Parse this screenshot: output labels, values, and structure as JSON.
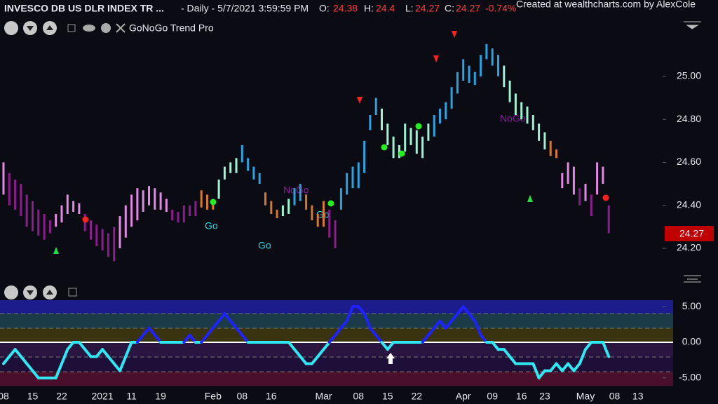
{
  "header": {
    "symbol": "INVESCO DB US DLR INDEX TR ...",
    "interval": "- Daily - 5/7/2021 3:59:59 PM",
    "quote": [
      {
        "label": "O:",
        "value": 24.38
      },
      {
        "label": "H:",
        "value": 24.4
      },
      {
        "label": "L:",
        "value": 24.27
      },
      {
        "label": "C:",
        "value": 24.27
      }
    ],
    "change": "-0.74%",
    "credit": "Created at wealthcharts.com by AlexCole",
    "indicator": "GoNoGo Trend Pro",
    "price_badge": 24.27
  },
  "chart_data": [
    {
      "type": "ohlc",
      "annotations": [
        "Go",
        "Go",
        "NoGo",
        "Go",
        "NoGo"
      ],
      "categories": [
        "08",
        null,
        null,
        null,
        null,
        "15",
        null,
        null,
        null,
        null,
        "22",
        null,
        null,
        null,
        null,
        null,
        null,
        "2021",
        null,
        null,
        null,
        null,
        "11",
        null,
        null,
        null,
        null,
        "19",
        null,
        null,
        null,
        null,
        null,
        null,
        null,
        null,
        "Feb",
        null,
        null,
        null,
        null,
        "08",
        null,
        null,
        null,
        null,
        "16",
        null,
        null,
        null,
        null,
        null,
        null,
        null,
        null,
        "Mar",
        null,
        null,
        null,
        null,
        null,
        "08",
        null,
        null,
        null,
        null,
        "15",
        null,
        null,
        null,
        null,
        "22",
        null,
        null,
        null,
        null,
        null,
        null,
        null,
        "Apr",
        null,
        null,
        null,
        null,
        "09",
        null,
        null,
        null,
        null,
        "16",
        null,
        null,
        null,
        "23",
        null,
        null,
        null,
        null,
        null,
        null,
        "May",
        null,
        null,
        null,
        null,
        "08",
        null,
        null,
        null,
        "13"
      ],
      "high": [
        24.6,
        24.55,
        24.52,
        24.5,
        24.45,
        24.42,
        24.38,
        24.36,
        24.33,
        24.36,
        24.4,
        24.45,
        24.42,
        24.41,
        24.36,
        24.33,
        24.31,
        24.29,
        24.27,
        24.3,
        24.35,
        24.4,
        24.45,
        24.48,
        24.47,
        24.49,
        24.48,
        24.46,
        24.43,
        24.38,
        24.37,
        24.4,
        24.4,
        24.42,
        24.47,
        24.45,
        24.42,
        24.52,
        24.58,
        24.6,
        24.62,
        24.68,
        24.62,
        24.58,
        24.55,
        24.46,
        24.42,
        24.38,
        24.4,
        24.43,
        24.48,
        24.5,
        24.45,
        24.4,
        24.36,
        24.42,
        24.38,
        24.33,
        24.48,
        24.55,
        24.58,
        24.6,
        24.7,
        24.82,
        24.9,
        24.85,
        24.78,
        24.72,
        24.68,
        24.78,
        24.76,
        24.75,
        24.72,
        24.78,
        24.82,
        24.85,
        24.88,
        24.95,
        25.02,
        25.08,
        25.05,
        25.02,
        25.1,
        25.15,
        25.13,
        25.1,
        25.05,
        24.98,
        24.92,
        24.88,
        24.86,
        24.82,
        24.78,
        24.74,
        24.7,
        24.66,
        24.55,
        24.6,
        24.58,
        24.48,
        24.5,
        24.45,
        24.6,
        24.58,
        24.4,
        null,
        null,
        null,
        null,
        null
      ],
      "low": [
        24.45,
        24.4,
        24.38,
        24.35,
        24.3,
        24.28,
        24.26,
        24.24,
        24.27,
        24.3,
        24.32,
        24.36,
        24.37,
        24.36,
        24.28,
        24.24,
        24.21,
        24.19,
        24.16,
        24.14,
        24.2,
        24.25,
        24.3,
        24.33,
        24.37,
        24.4,
        24.38,
        24.38,
        24.37,
        24.33,
        24.32,
        24.32,
        24.35,
        24.35,
        24.39,
        24.38,
        24.38,
        24.43,
        24.52,
        24.55,
        24.55,
        24.6,
        24.56,
        24.52,
        24.5,
        24.4,
        24.36,
        24.34,
        24.35,
        24.36,
        24.4,
        24.42,
        24.38,
        24.33,
        24.3,
        24.3,
        24.25,
        24.2,
        24.38,
        24.45,
        24.48,
        24.48,
        24.55,
        24.75,
        24.82,
        24.75,
        24.68,
        24.62,
        24.62,
        24.65,
        24.68,
        24.64,
        24.62,
        24.7,
        24.72,
        24.78,
        24.8,
        24.85,
        24.92,
        24.98,
        24.97,
        24.96,
        25.0,
        25.08,
        25.05,
        25.0,
        24.95,
        24.88,
        24.82,
        24.8,
        24.78,
        24.75,
        24.7,
        24.66,
        24.63,
        24.62,
        24.48,
        24.5,
        24.45,
        24.4,
        24.42,
        24.35,
        24.45,
        24.5,
        24.27,
        null,
        null,
        null,
        null,
        null
      ],
      "colors": [
        "#e28ae0",
        "#8e1b8c",
        "#8e1b8c",
        "#8e1b8c",
        "#8e1b8c",
        "#8e1b8c",
        "#8e1b8c",
        "#8e1b8c",
        "#8e1b8c",
        "#e28ae0",
        "#e28ae0",
        "#e28ae0",
        "#e28ae0",
        "#e28ae0",
        "#8e1b8c",
        "#8e1b8c",
        "#8e1b8c",
        "#8e1b8c",
        "#8e1b8c",
        "#8e1b8c",
        "#e28ae0",
        "#e28ae0",
        "#e28ae0",
        "#e28ae0",
        "#e28ae0",
        "#e28ae0",
        "#e28ae0",
        "#e28ae0",
        "#e28ae0",
        "#8e1b8c",
        "#8e1b8c",
        "#8e1b8c",
        "#8e1b8c",
        "#8e1b8c",
        "#d8782c",
        "#d8782c",
        "#d8782c",
        "#9ff2d4",
        "#9ff2d4",
        "#9ff2d4",
        "#9ff2d4",
        "#2aa3e0",
        "#2aa3e0",
        "#2aa3e0",
        "#2aa3e0",
        "#d8782c",
        "#d8782c",
        "#d8782c",
        "#9ff2d4",
        "#9ff2d4",
        "#2aa3e0",
        "#2aa3e0",
        "#d8782c",
        "#d8782c",
        "#d8782c",
        "#d8782c",
        "#8e1b8c",
        "#8e1b8c",
        "#2aa3e0",
        "#2aa3e0",
        "#2aa3e0",
        "#2aa3e0",
        "#2aa3e0",
        "#2aa3e0",
        "#2aa3e0",
        "#9ff2d4",
        "#9ff2d4",
        "#9ff2d4",
        "#9ff2d4",
        "#9ff2d4",
        "#9ff2d4",
        "#9ff2d4",
        "#9ff2d4",
        "#9ff2d4",
        "#2aa3e0",
        "#2aa3e0",
        "#2aa3e0",
        "#2aa3e0",
        "#2aa3e0",
        "#2aa3e0",
        "#2aa3e0",
        "#2aa3e0",
        "#2aa3e0",
        "#2aa3e0",
        "#2aa3e0",
        "#2aa3e0",
        "#9ff2d4",
        "#9ff2d4",
        "#9ff2d4",
        "#9ff2d4",
        "#9ff2d4",
        "#9ff2d4",
        "#9ff2d4",
        "#9ff2d4",
        "#d8782c",
        "#d8782c",
        "#e28ae0",
        "#e28ae0",
        "#e28ae0",
        "#8e1b8c",
        "#e28ae0",
        "#8e1b8c",
        "#e28ae0",
        "#e28ae0",
        "#8e1b8c",
        null,
        null,
        null,
        null,
        null
      ],
      "ylim": [
        24.05,
        25.29
      ],
      "yticks": [
        {
          "value": 24.2,
          "label": "24.20"
        },
        {
          "value": 24.4,
          "label": "24.40"
        },
        {
          "value": 24.6,
          "label": "24.60"
        },
        {
          "value": 24.8,
          "label": "24.80"
        },
        {
          "value": 25.0,
          "label": "25.00"
        }
      ]
    },
    {
      "type": "line",
      "values": [
        -3,
        -2,
        -1,
        -2,
        -3,
        -4,
        -5,
        -5,
        -5,
        -5,
        -3,
        -1,
        0,
        0,
        -1,
        -2,
        -2,
        -1,
        -2,
        -3,
        -4,
        -2,
        0,
        0,
        1,
        2,
        1,
        0,
        0,
        0,
        0,
        0,
        1,
        0,
        0,
        1,
        2,
        3,
        4,
        3,
        2,
        1,
        0,
        0,
        0,
        0,
        0,
        0,
        0,
        0,
        -1,
        -2,
        -3,
        -3,
        -2,
        -1,
        0,
        1,
        2,
        3,
        5,
        5,
        4,
        2,
        1,
        0,
        -1,
        0,
        0,
        0,
        0,
        0,
        0,
        1,
        2,
        3,
        2,
        3,
        4,
        5,
        4,
        3,
        1,
        0,
        0,
        -1,
        -1,
        -2,
        -3,
        -3,
        -3,
        -3,
        -5,
        -4,
        -4,
        -3,
        -4,
        -3,
        -4,
        -3,
        -1,
        0,
        0,
        0,
        -2,
        null,
        null,
        null,
        null,
        null
      ],
      "colors": {
        "positive": "#1e22ff",
        "negative": "#2ee8f2"
      },
      "ylim": [
        -6.1,
        5.9
      ],
      "yticks": [
        {
          "value": -5,
          "label": "-5.00"
        },
        {
          "value": 0,
          "label": "0.00"
        },
        {
          "value": 5,
          "label": "5.00"
        }
      ]
    }
  ]
}
